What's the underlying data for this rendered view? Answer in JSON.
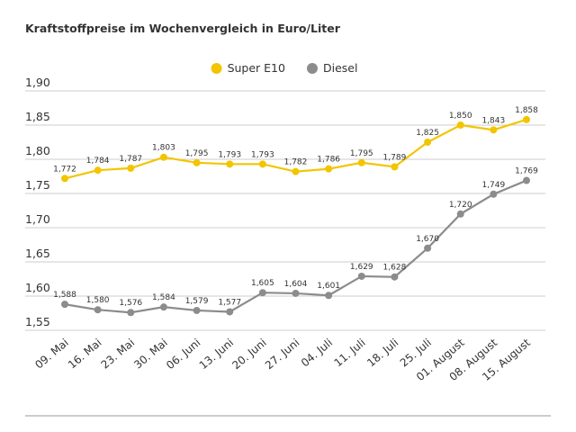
{
  "chart_data": {
    "type": "line",
    "title": "Kraftstoffpreise im Wochenvergleich in Euro/Liter",
    "categories": [
      "09. Mai",
      "16. Mai",
      "23. Mai",
      "30. Mai",
      "06. Juni",
      "13. Juni",
      "20. Juni",
      "27. Juni",
      "04. Juli",
      "11. Juli",
      "18. Juli",
      "25. Juli",
      "01. August",
      "08. August",
      "15. August"
    ],
    "series": [
      {
        "name": "Super E10",
        "color": "#f2c500",
        "values": [
          1.772,
          1.784,
          1.787,
          1.803,
          1.795,
          1.793,
          1.793,
          1.782,
          1.786,
          1.795,
          1.789,
          1.825,
          1.85,
          1.843,
          1.858
        ],
        "value_labels": [
          "1,772",
          "1,784",
          "1,787",
          "1,803",
          "1,795",
          "1,793",
          "1,793",
          "1,782",
          "1,786",
          "1,795",
          "1,789",
          "1,825",
          "1,850",
          "1,843",
          "1,858"
        ]
      },
      {
        "name": "Diesel",
        "color": "#8c8c8c",
        "values": [
          1.588,
          1.58,
          1.576,
          1.584,
          1.579,
          1.577,
          1.605,
          1.604,
          1.601,
          1.629,
          1.628,
          1.67,
          1.72,
          1.749,
          1.769
        ],
        "value_labels": [
          "1,588",
          "1,580",
          "1,576",
          "1,584",
          "1,579",
          "1,577",
          "1,605",
          "1,604",
          "1,601",
          "1,629",
          "1,628",
          "1,670",
          "1,720",
          "1,749",
          "1,769"
        ]
      }
    ],
    "ylim": [
      1.55,
      1.9
    ],
    "yticks": [
      {
        "value": 1.55,
        "label": "1,55"
      },
      {
        "value": 1.6,
        "label": "1,60"
      },
      {
        "value": 1.65,
        "label": "1,65"
      },
      {
        "value": 1.7,
        "label": "1,70"
      },
      {
        "value": 1.75,
        "label": "1,75"
      },
      {
        "value": 1.8,
        "label": "1,80"
      },
      {
        "value": 1.85,
        "label": "1,85"
      },
      {
        "value": 1.9,
        "label": "1,90"
      }
    ],
    "grid": true,
    "legend": "top"
  }
}
